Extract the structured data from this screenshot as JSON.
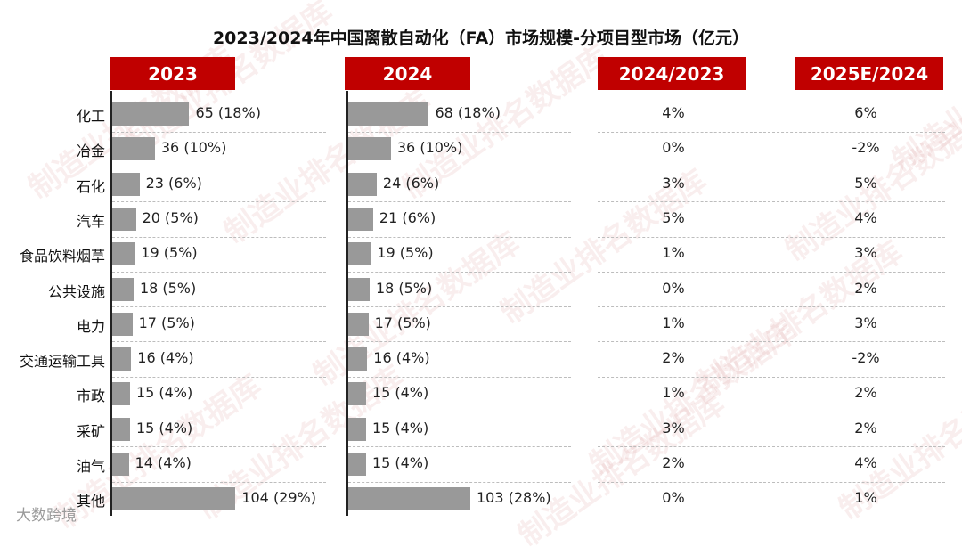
{
  "title": "2023/2024年中国离散自动化（FA）市场规模-分项目型市场（亿元）",
  "headers": [
    "2023",
    "2024",
    "2024/2023",
    "2025E/2024"
  ],
  "watermark": "制造业排名数据库",
  "footer": "大数跨境",
  "colors": {
    "header": "#c00000",
    "bar": "#999999"
  },
  "chart_data": {
    "type": "bar",
    "orientation": "horizontal",
    "title": "2023/2024年中国离散自动化（FA）市场规模-分项目型市场（亿元）",
    "categories": [
      "化工",
      "冶金",
      "石化",
      "汽车",
      "食品饮料烟草",
      "公共设施",
      "电力",
      "交通运输工具",
      "市政",
      "采矿",
      "油气",
      "其他"
    ],
    "series": [
      {
        "name": "2023",
        "values": [
          65,
          36,
          23,
          20,
          19,
          18,
          17,
          16,
          15,
          15,
          14,
          104
        ],
        "labels": [
          "65 (18%)",
          "36 (10%)",
          "23 (6%)",
          "20 (5%)",
          "19 (5%)",
          "18 (5%)",
          "17 (5%)",
          "16 (4%)",
          "15 (4%)",
          "15 (4%)",
          "14 (4%)",
          "104 (29%)"
        ]
      },
      {
        "name": "2024",
        "values": [
          68,
          36,
          24,
          21,
          19,
          18,
          17,
          16,
          15,
          15,
          15,
          103
        ],
        "labels": [
          "68 (18%)",
          "36 (10%)",
          "24 (6%)",
          "21 (6%)",
          "19 (5%)",
          "18 (5%)",
          "17 (5%)",
          "16 (4%)",
          "15 (4%)",
          "15 (4%)",
          "15 (4%)",
          "103 (28%)"
        ]
      }
    ],
    "growth_2024_2023": [
      "4%",
      "0%",
      "3%",
      "5%",
      "1%",
      "0%",
      "1%",
      "2%",
      "1%",
      "3%",
      "2%",
      "0%"
    ],
    "growth_2025E_2024": [
      "6%",
      "-2%",
      "5%",
      "4%",
      "3%",
      "2%",
      "3%",
      "-2%",
      "2%",
      "2%",
      "4%",
      "1%"
    ]
  }
}
